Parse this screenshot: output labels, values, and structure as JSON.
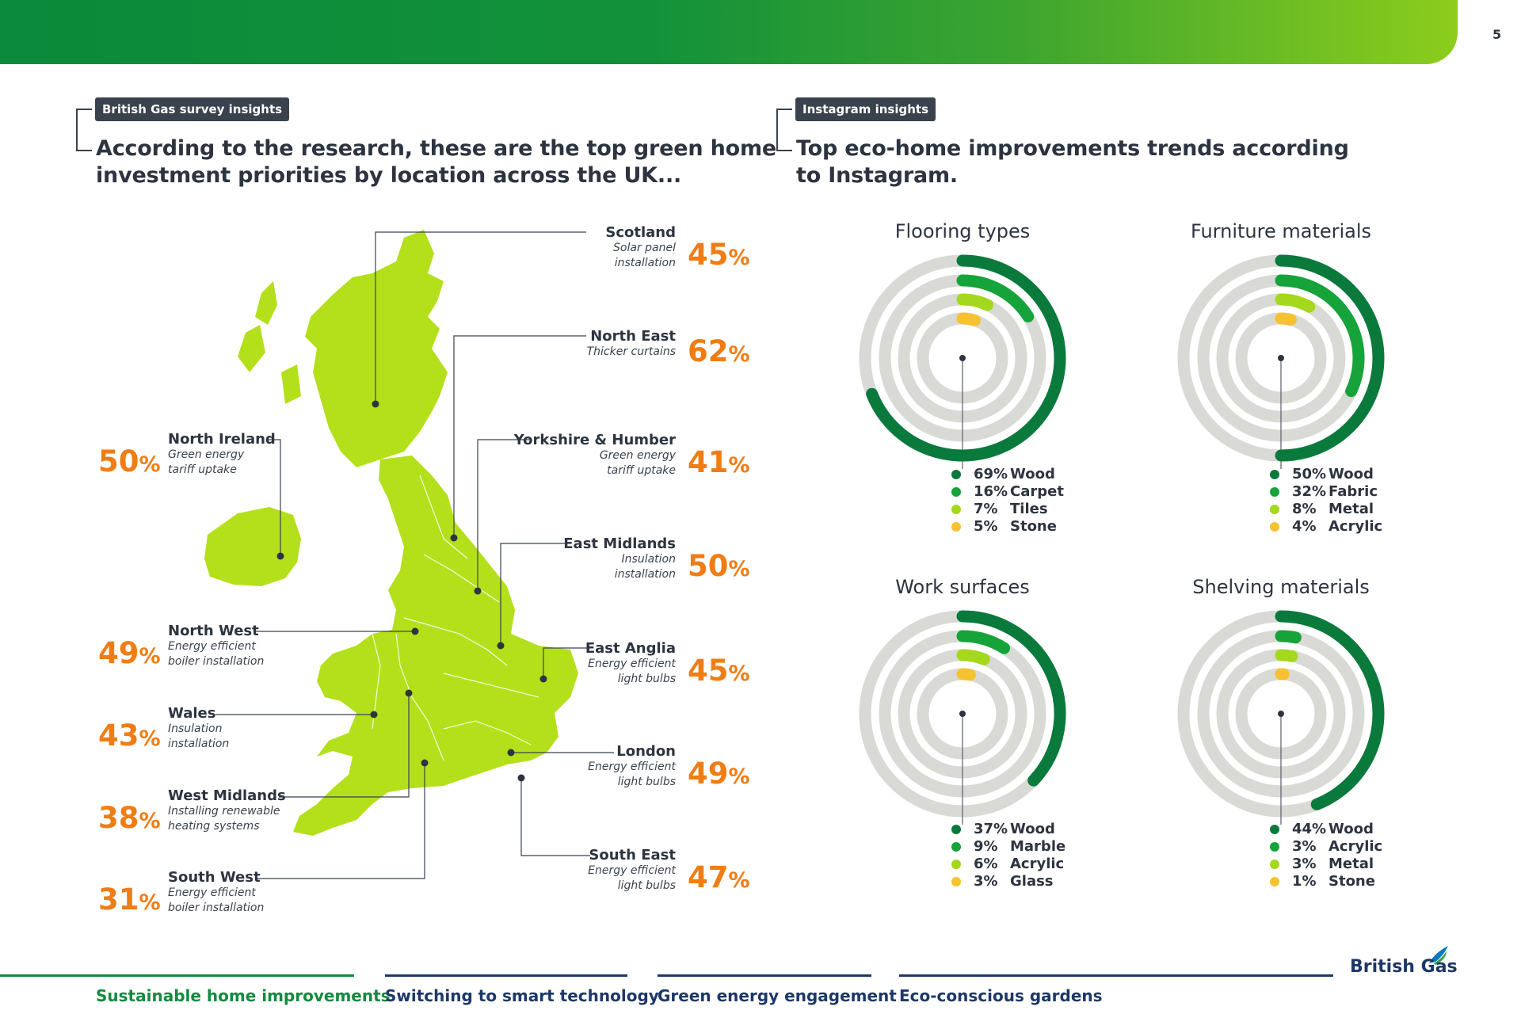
{
  "page_number": "5",
  "left": {
    "tag": "British Gas survey insights",
    "heading_line1": "According to the research, these are the top green home",
    "heading_line2": "investment priorities by location across the UK..."
  },
  "right": {
    "tag": "Instagram insights",
    "heading_line1": "Top eco-home improvements trends according",
    "heading_line2": "to Instagram."
  },
  "regions": [
    {
      "name": "Scotland",
      "desc1": "Solar panel",
      "desc2": "installation",
      "pct": "45",
      "sym": "%"
    },
    {
      "name": "North East",
      "desc1": "Thicker curtains",
      "desc2": "",
      "pct": "62",
      "sym": "%"
    },
    {
      "name": "Yorkshire & Humber",
      "desc1": "Green energy",
      "desc2": "tariff uptake",
      "pct": "41",
      "sym": "%"
    },
    {
      "name": "East Midlands",
      "desc1": "Insulation",
      "desc2": "installation",
      "pct": "50",
      "sym": "%"
    },
    {
      "name": "East Anglia",
      "desc1": "Energy efficient",
      "desc2": "light bulbs",
      "pct": "45",
      "sym": "%"
    },
    {
      "name": "London",
      "desc1": "Energy efficient",
      "desc2": "light bulbs",
      "pct": "49",
      "sym": "%"
    },
    {
      "name": "South East",
      "desc1": "Energy efficient",
      "desc2": "light bulbs",
      "pct": "47",
      "sym": "%"
    },
    {
      "name": "North Ireland",
      "desc1": "Green energy",
      "desc2": "tariff uptake",
      "pct": "50",
      "sym": "%"
    },
    {
      "name": "North West",
      "desc1": "Energy efficient",
      "desc2": "boiler installation",
      "pct": "49",
      "sym": "%"
    },
    {
      "name": "Wales",
      "desc1": "Insulation",
      "desc2": "installation",
      "pct": "43",
      "sym": "%"
    },
    {
      "name": "West Midlands",
      "desc1": "Installing renewable",
      "desc2": "heating systems",
      "pct": "38",
      "sym": "%"
    },
    {
      "name": "South West",
      "desc1": "Energy efficient",
      "desc2": "boiler installation",
      "pct": "31",
      "sym": "%"
    }
  ],
  "colors": {
    "dark_green": "#0a7a3c",
    "mid_green": "#16a33a",
    "lime": "#a3d81c",
    "yellow": "#f7c231",
    "track": "#d9d9d6",
    "orange": "#f07d14",
    "map_fill": "#b3e01a"
  },
  "chart_data": [
    {
      "type": "radial-bar",
      "title": "Flooring types",
      "series": [
        {
          "label": "Wood",
          "display": "69%",
          "value": 69
        },
        {
          "label": "Carpet",
          "display": "16%",
          "value": 16
        },
        {
          "label": "Tiles",
          "display": "7%",
          "value": 7
        },
        {
          "label": "Stone",
          "display": "5%",
          "value": 5
        }
      ]
    },
    {
      "type": "radial-bar",
      "title": "Furniture materials",
      "series": [
        {
          "label": "Wood",
          "display": "50%",
          "value": 50
        },
        {
          "label": "Fabric",
          "display": "32%",
          "value": 32
        },
        {
          "label": "Metal",
          "display": "8%",
          "value": 8
        },
        {
          "label": "Acrylic",
          "display": "4%",
          "value": 4
        }
      ]
    },
    {
      "type": "radial-bar",
      "title": "Work surfaces",
      "series": [
        {
          "label": "Wood",
          "display": "37%",
          "value": 37
        },
        {
          "label": "Marble",
          "display": "9%",
          "value": 9
        },
        {
          "label": "Acrylic",
          "display": "6%",
          "value": 6
        },
        {
          "label": "Glass",
          "display": "3%",
          "value": 3
        }
      ]
    },
    {
      "type": "radial-bar",
      "title": "Shelving materials",
      "series": [
        {
          "label": "Wood",
          "display": "44%",
          "value": 44
        },
        {
          "label": "Acrylic",
          "display": "3%",
          "value": 3
        },
        {
          "label": "Metal",
          "display": "3%",
          "value": 3
        },
        {
          "label": "Stone",
          "display": "1%",
          "value": 1
        }
      ]
    }
  ],
  "footer": {
    "tabs": [
      "Sustainable home improvements",
      "Switching to smart technology",
      "Green energy engagement",
      "Eco-conscious gardens"
    ],
    "brand": "British Gas"
  }
}
